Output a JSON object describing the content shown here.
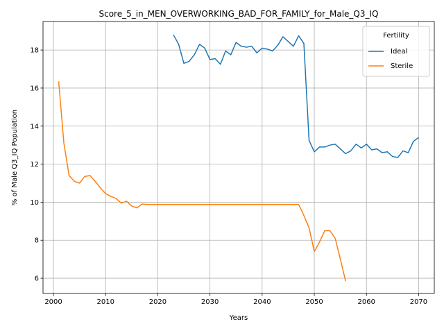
{
  "chart_data": {
    "type": "line",
    "title": "Score_5_in_MEN_OVERWORKING_BAD_FOR_FAMILY_for_Male_Q3_IQ",
    "xlabel": "Years",
    "ylabel": "% of Male Q3_IQ Population",
    "xlim": [
      1998,
      2073
    ],
    "ylim": [
      5.2,
      19.5
    ],
    "xticks": [
      2000,
      2010,
      2020,
      2030,
      2040,
      2050,
      2060,
      2070
    ],
    "yticks": [
      6,
      8,
      10,
      12,
      14,
      16,
      18
    ],
    "grid": true,
    "legend": {
      "title": "Fertility",
      "placement": "top-right"
    },
    "series": [
      {
        "name": "Ideal",
        "color": "#1f77b4",
        "x": [
          2023,
          2024,
          2025,
          2026,
          2027,
          2028,
          2029,
          2030,
          2031,
          2032,
          2033,
          2034,
          2035,
          2036,
          2037,
          2038,
          2039,
          2040,
          2041,
          2042,
          2043,
          2044,
          2045,
          2046,
          2047,
          2048,
          2049,
          2050,
          2051,
          2052,
          2053,
          2054,
          2055,
          2056,
          2057,
          2058,
          2059,
          2060,
          2061,
          2062,
          2063,
          2064,
          2065,
          2066,
          2067,
          2068,
          2069,
          2070
        ],
        "y": [
          18.8,
          18.3,
          17.3,
          17.4,
          17.75,
          18.3,
          18.1,
          17.5,
          17.55,
          17.25,
          17.95,
          17.75,
          18.4,
          18.2,
          18.15,
          18.2,
          17.85,
          18.1,
          18.05,
          17.95,
          18.25,
          18.7,
          18.45,
          18.2,
          18.75,
          18.35,
          13.25,
          12.65,
          12.9,
          12.9,
          13.0,
          13.05,
          12.8,
          12.55,
          12.7,
          13.05,
          12.85,
          13.05,
          12.75,
          12.8,
          12.6,
          12.65,
          12.4,
          12.35,
          12.7,
          12.6,
          13.2,
          13.4
        ]
      },
      {
        "name": "Sterile",
        "color": "#ff7f0e",
        "x": [
          2001,
          2002,
          2003,
          2004,
          2005,
          2006,
          2007,
          2008,
          2009,
          2010,
          2011,
          2012,
          2013,
          2014,
          2015,
          2016,
          2017,
          2018,
          2019,
          2020,
          2021,
          2022,
          2023,
          2024,
          2025,
          2026,
          2027,
          2028,
          2029,
          2030,
          2031,
          2032,
          2033,
          2034,
          2035,
          2036,
          2037,
          2038,
          2039,
          2040,
          2041,
          2042,
          2043,
          2044,
          2045,
          2046,
          2047,
          2048,
          2049,
          2050,
          2051,
          2052,
          2053,
          2054,
          2055,
          2056
        ],
        "y": [
          16.35,
          13.1,
          11.4,
          11.1,
          11.0,
          11.35,
          11.4,
          11.1,
          10.75,
          10.45,
          10.3,
          10.2,
          9.95,
          10.05,
          9.8,
          9.7,
          9.9,
          9.88,
          9.88,
          9.88,
          9.88,
          9.88,
          9.88,
          9.88,
          9.88,
          9.88,
          9.88,
          9.88,
          9.88,
          9.88,
          9.88,
          9.88,
          9.88,
          9.88,
          9.88,
          9.88,
          9.88,
          9.88,
          9.88,
          9.88,
          9.88,
          9.88,
          9.88,
          9.88,
          9.88,
          9.88,
          9.88,
          9.3,
          8.65,
          7.4,
          7.9,
          8.5,
          8.5,
          8.1,
          7.0,
          5.85
        ]
      }
    ]
  }
}
